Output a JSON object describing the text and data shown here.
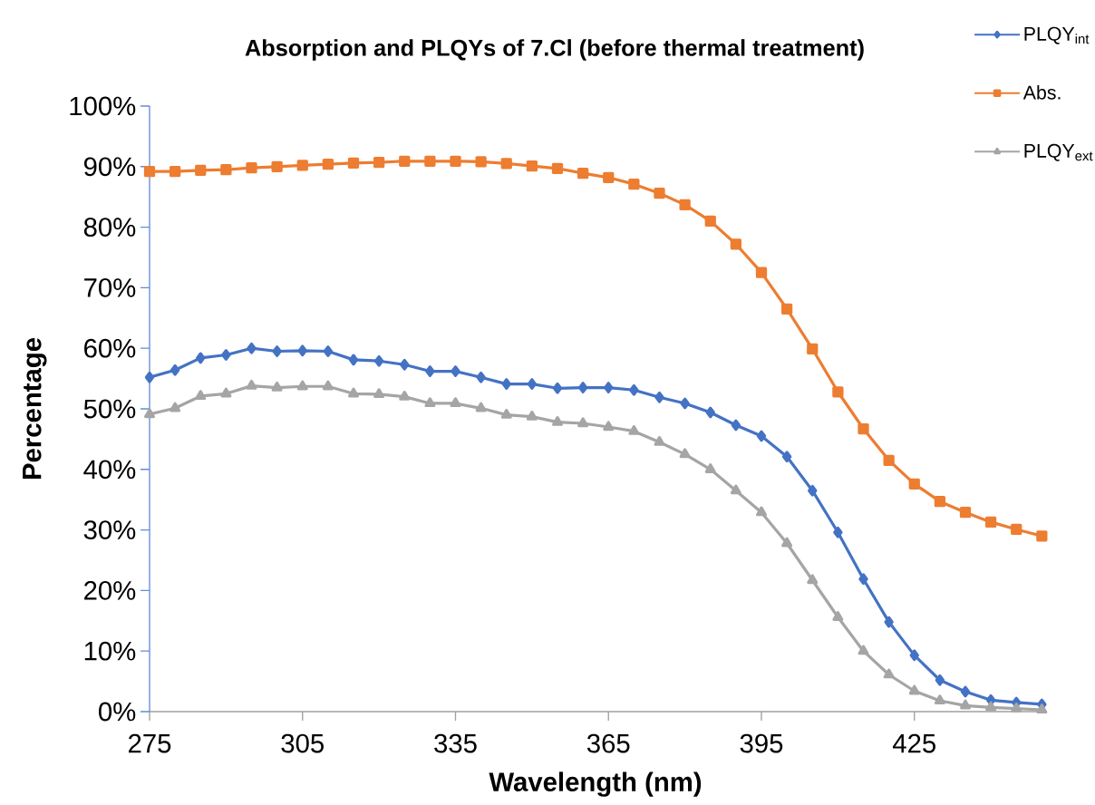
{
  "chart_data": {
    "type": "line",
    "title": "**Absorption and PLQYs of 7.Cl (before thermal treatment)**",
    "xlabel": "Wavelength (nm)",
    "ylabel": "Percentage",
    "x": [
      275,
      280,
      285,
      290,
      295,
      300,
      305,
      310,
      315,
      320,
      325,
      330,
      335,
      340,
      345,
      350,
      355,
      360,
      365,
      370,
      375,
      380,
      385,
      390,
      395,
      400,
      405,
      410,
      415,
      420,
      425,
      430,
      435,
      440,
      445,
      450
    ],
    "series": [
      {
        "name": "PLQY$_{int}$",
        "color": "#4472c4",
        "marker": "diamond",
        "values": [
          55.2,
          56.4,
          58.4,
          58.9,
          60.0,
          59.5,
          59.6,
          59.5,
          58.1,
          57.9,
          57.3,
          56.2,
          56.2,
          55.2,
          54.1,
          54.1,
          53.4,
          53.5,
          53.5,
          53.1,
          51.9,
          50.9,
          49.4,
          47.3,
          45.5,
          42.1,
          36.5,
          29.6,
          21.9,
          14.8,
          9.3,
          5.2,
          3.3,
          1.9,
          1.5,
          1.2
        ]
      },
      {
        "name": "Abs.",
        "color": "#ed7d31",
        "marker": "square",
        "values": [
          89.2,
          89.2,
          89.4,
          89.5,
          89.8,
          90.0,
          90.2,
          90.4,
          90.6,
          90.7,
          90.9,
          90.9,
          90.9,
          90.8,
          90.5,
          90.1,
          89.7,
          88.9,
          88.2,
          87.1,
          85.6,
          83.7,
          81.0,
          77.2,
          72.5,
          66.5,
          59.9,
          52.8,
          46.7,
          41.5,
          37.6,
          34.7,
          32.9,
          31.3,
          30.1,
          29.0
        ]
      },
      {
        "name": "PLQY$_{ext}$",
        "color": "#a5a5a5",
        "marker": "triangle",
        "values": [
          49.1,
          50.1,
          52.1,
          52.5,
          53.8,
          53.5,
          53.7,
          53.7,
          52.5,
          52.4,
          52.0,
          50.9,
          50.9,
          50.1,
          49.0,
          48.7,
          47.8,
          47.6,
          47.0,
          46.3,
          44.5,
          42.5,
          40.0,
          36.5,
          32.9,
          27.8,
          21.7,
          15.6,
          10.0,
          6.1,
          3.4,
          1.8,
          1.0,
          0.7,
          0.5,
          0.3
        ]
      }
    ],
    "xlim": [
      275,
      451
    ],
    "xticks": [
      275,
      305,
      335,
      365,
      395,
      425
    ],
    "ylim": [
      0,
      100
    ],
    "yticks": [
      {
        "value": 0,
        "label": "0%"
      },
      {
        "value": 10,
        "label": "10%"
      },
      {
        "value": 20,
        "label": "20%"
      },
      {
        "value": 30,
        "label": "30%"
      },
      {
        "value": 40,
        "label": "40%"
      },
      {
        "value": 50,
        "label": "50%"
      },
      {
        "value": 60,
        "label": "60%"
      },
      {
        "value": 70,
        "label": "70%"
      },
      {
        "value": 80,
        "label": "80%"
      },
      {
        "value": 90,
        "label": "90%"
      },
      {
        "value": 100,
        "label": "100%"
      }
    ],
    "grid": false,
    "legend": "top right",
    "line_style": "solid"
  }
}
